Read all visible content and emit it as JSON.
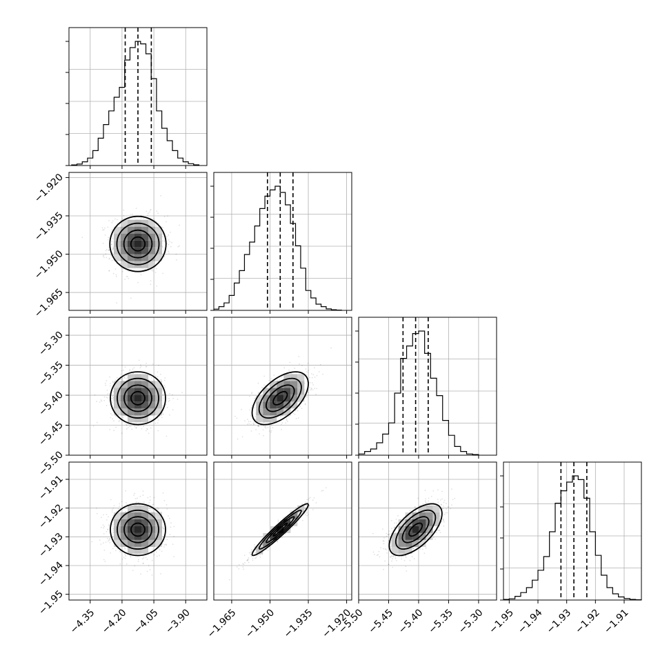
{
  "chart_data": {
    "type": "corner",
    "grid": true,
    "parameters": [
      {
        "range": [
          -4.45,
          -3.8
        ],
        "ticks": [
          -4.35,
          -4.2,
          -4.05,
          -3.9
        ],
        "tick_labels": [
          "−4.35",
          "−4.20",
          "−4.05",
          "−3.90"
        ],
        "mean": -4.125,
        "sd": 0.065,
        "quantiles": [
          -4.185,
          -4.125,
          -4.062
        ],
        "hist": [
          [
            -4.425,
            0.005
          ],
          [
            -4.4,
            0.012
          ],
          [
            -4.375,
            0.03
          ],
          [
            -4.35,
            0.06
          ],
          [
            -4.325,
            0.12
          ],
          [
            -4.3,
            0.22
          ],
          [
            -4.275,
            0.33
          ],
          [
            -4.25,
            0.44
          ],
          [
            -4.225,
            0.55
          ],
          [
            -4.2,
            0.63
          ],
          [
            -4.175,
            0.85
          ],
          [
            -4.15,
            0.95
          ],
          [
            -4.125,
            1.0
          ],
          [
            -4.1,
            0.98
          ],
          [
            -4.075,
            0.9
          ],
          [
            -4.05,
            0.7
          ],
          [
            -4.025,
            0.44
          ],
          [
            -4.0,
            0.3
          ],
          [
            -3.975,
            0.2
          ],
          [
            -3.95,
            0.12
          ],
          [
            -3.925,
            0.06
          ],
          [
            -3.9,
            0.03
          ],
          [
            -3.875,
            0.015
          ],
          [
            -3.85,
            0.006
          ]
        ]
      },
      {
        "range": [
          -1.972,
          -1.918
        ],
        "ticks": [
          -1.965,
          -1.95,
          -1.935,
          -1.92
        ],
        "tick_labels": [
          "−1.965",
          "−1.950",
          "−1.935",
          "−1.920"
        ],
        "mean": -1.946,
        "sd": 0.0055,
        "quantiles": [
          -1.951,
          -1.946,
          -1.941
        ],
        "hist": [
          [
            -1.971,
            0.01
          ],
          [
            -1.969,
            0.03
          ],
          [
            -1.967,
            0.06
          ],
          [
            -1.965,
            0.12
          ],
          [
            -1.963,
            0.22
          ],
          [
            -1.961,
            0.32
          ],
          [
            -1.959,
            0.45
          ],
          [
            -1.957,
            0.55
          ],
          [
            -1.955,
            0.68
          ],
          [
            -1.953,
            0.82
          ],
          [
            -1.951,
            0.92
          ],
          [
            -1.949,
            0.97
          ],
          [
            -1.947,
            1.0
          ],
          [
            -1.945,
            0.95
          ],
          [
            -1.943,
            0.85
          ],
          [
            -1.941,
            0.7
          ],
          [
            -1.939,
            0.52
          ],
          [
            -1.937,
            0.34
          ],
          [
            -1.935,
            0.16
          ],
          [
            -1.933,
            0.1
          ],
          [
            -1.931,
            0.05
          ],
          [
            -1.929,
            0.03
          ],
          [
            -1.927,
            0.012
          ],
          [
            -1.925,
            0.005
          ],
          [
            -1.923,
            0.002
          ]
        ]
      },
      {
        "range": [
          -5.5,
          -5.27
        ],
        "ticks": [
          -5.5,
          -5.45,
          -5.4,
          -5.35,
          -5.3
        ],
        "tick_labels": [
          "−5.50",
          "−5.45",
          "−5.40",
          "−5.35",
          "−5.30"
        ],
        "mean": -5.405,
        "sd": 0.022,
        "quantiles": [
          -5.426,
          -5.405,
          -5.384
        ],
        "hist": [
          [
            -5.495,
            0.01
          ],
          [
            -5.485,
            0.03
          ],
          [
            -5.475,
            0.05
          ],
          [
            -5.465,
            0.1
          ],
          [
            -5.455,
            0.17
          ],
          [
            -5.445,
            0.26
          ],
          [
            -5.435,
            0.5
          ],
          [
            -5.425,
            0.78
          ],
          [
            -5.415,
            0.88
          ],
          [
            -5.405,
            0.98
          ],
          [
            -5.395,
            1.0
          ],
          [
            -5.385,
            0.82
          ],
          [
            -5.375,
            0.62
          ],
          [
            -5.365,
            0.48
          ],
          [
            -5.355,
            0.28
          ],
          [
            -5.345,
            0.16
          ],
          [
            -5.335,
            0.07
          ],
          [
            -5.325,
            0.03
          ],
          [
            -5.315,
            0.01
          ],
          [
            -5.305,
            0.005
          ]
        ]
      },
      {
        "range": [
          -1.952,
          -1.904
        ],
        "ticks": [
          -1.95,
          -1.94,
          -1.93,
          -1.92,
          -1.91
        ],
        "tick_labels": [
          "−1.95",
          "−1.94",
          "−1.93",
          "−1.92",
          "−1.91"
        ],
        "mean": -1.9275,
        "sd": 0.0045,
        "quantiles": [
          -1.932,
          -1.9275,
          -1.923
        ],
        "hist": [
          [
            -1.951,
            0.005
          ],
          [
            -1.949,
            0.01
          ],
          [
            -1.947,
            0.03
          ],
          [
            -1.945,
            0.06
          ],
          [
            -1.943,
            0.1
          ],
          [
            -1.941,
            0.16
          ],
          [
            -1.939,
            0.24
          ],
          [
            -1.937,
            0.35
          ],
          [
            -1.935,
            0.55
          ],
          [
            -1.933,
            0.78
          ],
          [
            -1.931,
            0.88
          ],
          [
            -1.929,
            0.95
          ],
          [
            -1.927,
            1.0
          ],
          [
            -1.925,
            0.97
          ],
          [
            -1.923,
            0.82
          ],
          [
            -1.921,
            0.55
          ],
          [
            -1.919,
            0.36
          ],
          [
            -1.917,
            0.2
          ],
          [
            -1.915,
            0.1
          ],
          [
            -1.913,
            0.05
          ],
          [
            -1.911,
            0.025
          ],
          [
            -1.909,
            0.012
          ],
          [
            -1.907,
            0.005
          ],
          [
            -1.905,
            0.002
          ]
        ]
      }
    ],
    "correlations": [
      [
        1.0,
        0.0,
        0.0,
        0.0
      ],
      [
        0.0,
        1.0,
        0.55,
        0.96
      ],
      [
        0.0,
        0.55,
        1.0,
        0.62
      ],
      [
        0.0,
        0.96,
        0.62,
        1.0
      ]
    ],
    "contour_levels_sigma": [
      0.5,
      1.0,
      1.5,
      2.0
    ],
    "hist_color": "#000000",
    "scatter_color": "#000000",
    "grid_color": "#b0b0b0"
  }
}
